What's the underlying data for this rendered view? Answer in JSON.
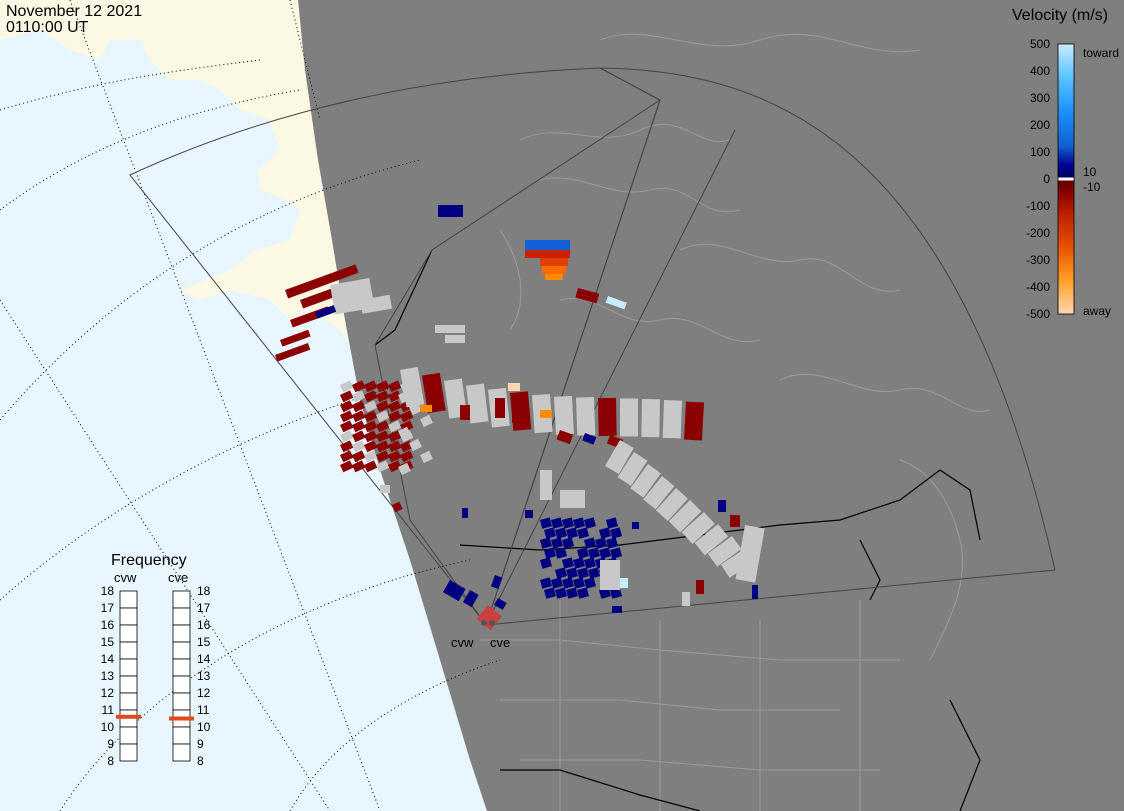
{
  "header": {
    "date": "November 12 2021",
    "time": "0110:00 UT"
  },
  "colors": {
    "ocean": "#e8f6ff",
    "land": "#fbf8e4",
    "night": "#7f7f7f",
    "ground_scatter": "#c8c8c8",
    "toward_dark": "#000080",
    "toward_light": "#c8ecff",
    "away_dark": "#8b0000",
    "away_light": "#ffd7b0"
  },
  "velocity_scale": {
    "title": "Velocity (m/s)",
    "ticks": [
      "500",
      "400",
      "300",
      "200",
      "100",
      "0",
      "-100",
      "-200",
      "-300",
      "-400",
      "-500"
    ],
    "toward_label": "toward",
    "away_label": "away",
    "plus_label": "10",
    "minus_label": "-10"
  },
  "frequency": {
    "title": "Frequency",
    "ticks": [
      "18",
      "17",
      "16",
      "15",
      "14",
      "13",
      "12",
      "11",
      "10",
      "9",
      "8"
    ],
    "radars": [
      {
        "code": "cvw",
        "freq_mhz": 10.6
      },
      {
        "code": "cve",
        "freq_mhz": 10.5
      }
    ]
  },
  "radar_sites": [
    {
      "code": "cvw"
    },
    {
      "code": "cve"
    }
  ]
}
